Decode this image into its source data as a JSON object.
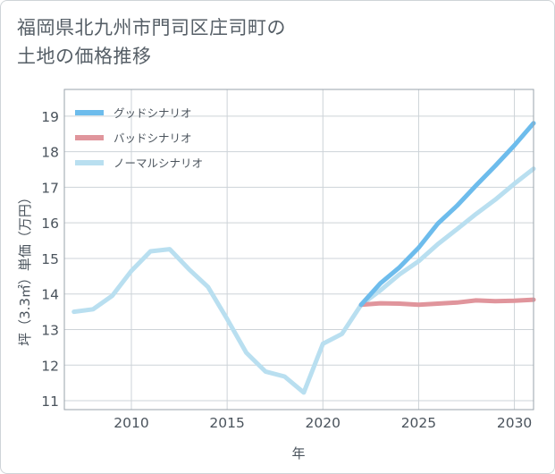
{
  "title_line1": "福岡県北九州市門司区庄司町の",
  "title_line2": "土地の価格推移",
  "chart_data": {
    "type": "line",
    "title": "福岡県北九州市門司区庄司町の土地の価格推移",
    "xlabel": "年",
    "ylabel": "坪（3.3㎡）単価（万円）",
    "xlim": [
      2006.5,
      2031
    ],
    "ylim": [
      10.75,
      19.75
    ],
    "xticks": [
      2010,
      2015,
      2020,
      2025,
      2030
    ],
    "yticks": [
      11,
      12,
      13,
      14,
      15,
      16,
      17,
      18,
      19
    ],
    "grid": true,
    "legend_position": "top-left",
    "series": [
      {
        "name": "グッドシナリオ",
        "color": "#6dbcec",
        "x": [
          2022,
          2023,
          2024,
          2025,
          2026,
          2027,
          2028,
          2029,
          2030,
          2031
        ],
        "values": [
          13.7,
          14.3,
          14.75,
          15.3,
          15.98,
          16.48,
          17.05,
          17.6,
          18.18,
          18.8
        ]
      },
      {
        "name": "バッドシナリオ",
        "color": "#e0959c",
        "x": [
          2022,
          2023,
          2024,
          2025,
          2026,
          2027,
          2028,
          2029,
          2030,
          2031
        ],
        "values": [
          13.7,
          13.74,
          13.73,
          13.7,
          13.73,
          13.76,
          13.82,
          13.8,
          13.81,
          13.84
        ]
      },
      {
        "name": "ノーマルシナリオ",
        "color": "#b9dff0",
        "x": [
          2007,
          2008,
          2009,
          2010,
          2011,
          2012,
          2013,
          2014,
          2015,
          2016,
          2017,
          2018,
          2019,
          2020,
          2021,
          2022,
          2023,
          2024,
          2025,
          2026,
          2027,
          2028,
          2029,
          2030,
          2031
        ],
        "values": [
          13.5,
          13.57,
          13.95,
          14.65,
          15.2,
          15.26,
          14.7,
          14.2,
          13.3,
          12.35,
          11.82,
          11.68,
          11.23,
          12.6,
          12.88,
          13.7,
          14.1,
          14.55,
          14.92,
          15.4,
          15.82,
          16.25,
          16.65,
          17.1,
          17.52
        ]
      }
    ]
  }
}
